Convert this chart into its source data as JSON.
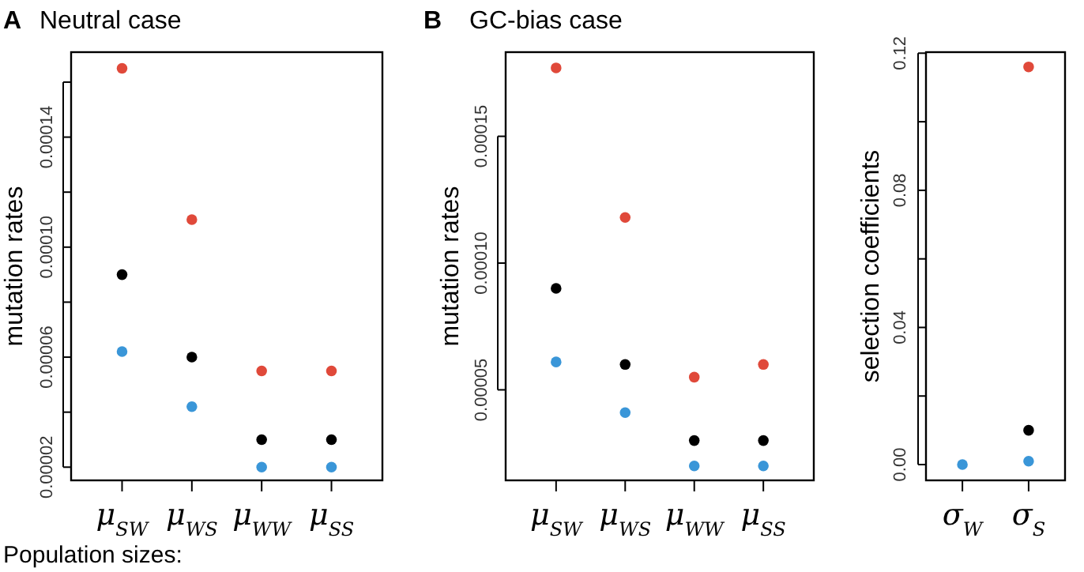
{
  "chart_data": [
    {
      "type": "scatter",
      "title": "Neutral case",
      "ylabel": "mutation rates",
      "annotations": [
        "A",
        "Population sizes:"
      ],
      "categories": [
        "μ$_{SW}$",
        "μ$_{WS}$",
        "μ$_{WW}$",
        "μ$_{SS}$"
      ],
      "ylim": [
        1.52e-05,
        0.0001709
      ],
      "yticks": [
        {
          "value": 2e-05,
          "label": "0.00002"
        },
        {
          "value": 4e-05,
          "label": null
        },
        {
          "value": 6e-05,
          "label": "0.00006"
        },
        {
          "value": 8e-05,
          "label": null
        },
        {
          "value": 0.0001,
          "label": "0.00010"
        },
        {
          "value": 0.00012,
          "label": null
        },
        {
          "value": 0.00014,
          "label": "0.00014"
        },
        {
          "value": 0.00016,
          "label": null
        }
      ],
      "grid": false,
      "marker": "circle",
      "series": [
        {
          "color": "#e0493a",
          "values": [
            0.000165,
            0.00011,
            5.5e-05,
            5.5e-05
          ]
        },
        {
          "color": "#000000",
          "values": [
            9e-05,
            6e-05,
            3e-05,
            3e-05
          ]
        },
        {
          "color": "#3a96d8",
          "values": [
            6.2e-05,
            4.2e-05,
            2e-05,
            2e-05
          ]
        }
      ]
    },
    {
      "type": "scatter",
      "title": "GC-bias case",
      "ylabel": "mutation rates",
      "annotations": [
        "B"
      ],
      "categories": [
        "μ$_{SW}$",
        "μ$_{WS}$",
        "μ$_{WW}$",
        "μ$_{SS}$"
      ],
      "ylim": [
        1.43e-05,
        0.0001832
      ],
      "yticks": [
        {
          "value": 5e-05,
          "label": "0.00005"
        },
        {
          "value": 0.0001,
          "label": "0.00010"
        },
        {
          "value": 0.00015,
          "label": "0.00015"
        }
      ],
      "grid": false,
      "marker": "circle",
      "series": [
        {
          "color": "#e0493a",
          "values": [
            0.000177,
            0.000118,
            5.5e-05,
            6e-05
          ]
        },
        {
          "color": "#000000",
          "values": [
            9e-05,
            6e-05,
            3e-05,
            3e-05
          ]
        },
        {
          "color": "#3a96d8",
          "values": [
            6.1e-05,
            4.1e-05,
            2e-05,
            2e-05
          ]
        }
      ]
    },
    {
      "type": "scatter",
      "ylabel": "selection coefficients",
      "categories": [
        "σ$_{W}$",
        "σ$_{S}$"
      ],
      "ylim": [
        -0.0046,
        0.1203
      ],
      "yticks": [
        {
          "value": 0,
          "label": "0.00"
        },
        {
          "value": 0.02,
          "label": null
        },
        0.04,
        {
          "value": 0.06,
          "label": null
        },
        0.08,
        {
          "value": 0.1,
          "label": null
        },
        0.12
      ],
      "grid": false,
      "marker": "circle",
      "series": [
        {
          "color": "#e0493a",
          "values": [
            null,
            0.116
          ]
        },
        {
          "color": "#000000",
          "values": [
            null,
            0.01
          ]
        },
        {
          "color": "#3a96d8",
          "values": [
            0,
            0.001
          ]
        }
      ]
    }
  ]
}
